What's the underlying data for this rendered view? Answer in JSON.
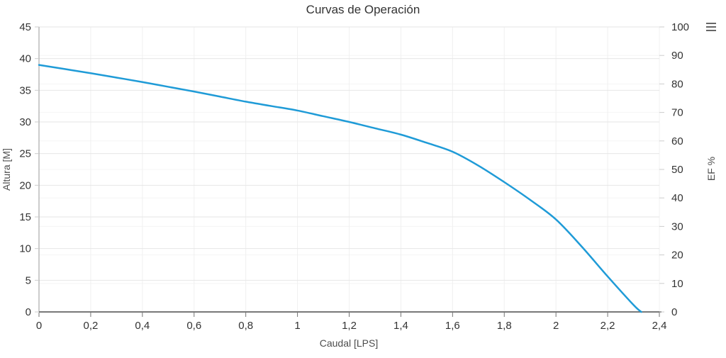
{
  "icons": {
    "context_menu": "hamburger-icon"
  },
  "chart_data": {
    "type": "line",
    "title": "Curvas de Operación",
    "xlabel": "Caudal [LPS]",
    "ylabel_left": "Altura [M]",
    "ylabel_right": "EF %",
    "grid": true,
    "legend": false,
    "decimal_separator": ",",
    "x_axis": {
      "min": 0,
      "max": 2.4,
      "tick_interval": 0.2,
      "tick_values": [
        0,
        0.2,
        0.4,
        0.6,
        0.8,
        1,
        1.2,
        1.4,
        1.6,
        1.8,
        2,
        2.2,
        2.4
      ],
      "tick_labels": [
        "0",
        "0,2",
        "0,4",
        "0,6",
        "0,8",
        "1",
        "1,2",
        "1,4",
        "1,6",
        "1,8",
        "2",
        "2,2",
        "2,4"
      ]
    },
    "y_axis_left": {
      "min": 0,
      "max": 45,
      "tick_interval": 5,
      "tick_values": [
        0,
        5,
        10,
        15,
        20,
        25,
        30,
        35,
        40,
        45
      ],
      "tick_labels": [
        "0",
        "5",
        "10",
        "15",
        "20",
        "25",
        "30",
        "35",
        "40",
        "45"
      ]
    },
    "y_axis_right": {
      "min": 0,
      "max": 100,
      "tick_interval": 10,
      "tick_values": [
        0,
        10,
        20,
        30,
        40,
        50,
        60,
        70,
        80,
        90,
        100
      ],
      "tick_labels": [
        "0",
        "10",
        "20",
        "30",
        "40",
        "50",
        "60",
        "70",
        "80",
        "90",
        "100"
      ]
    },
    "series": [
      {
        "name": "Altura [M]",
        "color": "#1f9bd7",
        "points": [
          [
            0,
            39.0
          ],
          [
            0.1,
            38.35
          ],
          [
            0.2,
            37.7
          ],
          [
            0.3,
            37.0
          ],
          [
            0.4,
            36.3
          ],
          [
            0.5,
            35.55
          ],
          [
            0.6,
            34.8
          ],
          [
            0.7,
            34.0
          ],
          [
            0.8,
            33.2
          ],
          [
            0.9,
            32.5
          ],
          [
            1.0,
            31.8
          ],
          [
            1.1,
            30.9
          ],
          [
            1.2,
            30.0
          ],
          [
            1.3,
            29.0
          ],
          [
            1.4,
            28.0
          ],
          [
            1.5,
            26.7
          ],
          [
            1.6,
            25.3
          ],
          [
            1.7,
            23.1
          ],
          [
            1.8,
            20.5
          ],
          [
            1.9,
            17.7
          ],
          [
            2.0,
            14.6
          ],
          [
            2.1,
            10.3
          ],
          [
            2.2,
            5.6
          ],
          [
            2.3,
            1.1
          ],
          [
            2.33,
            0
          ]
        ]
      }
    ]
  }
}
